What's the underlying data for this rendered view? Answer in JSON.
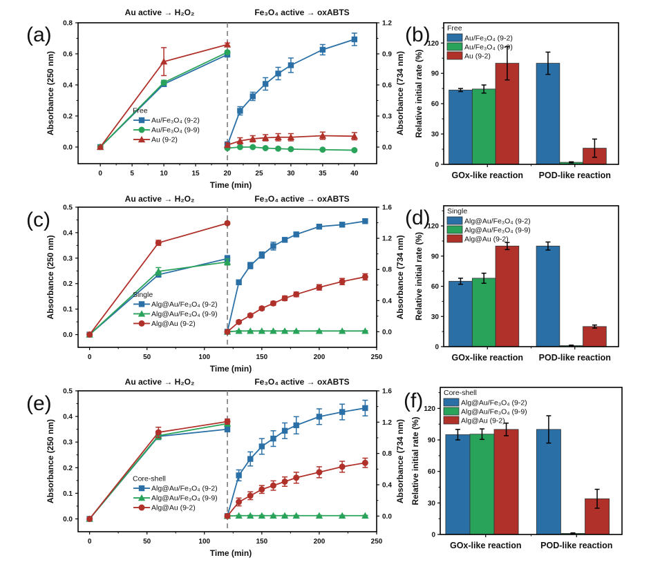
{
  "colors": {
    "blue": "#2a70a6",
    "green": "#2aa35a",
    "red": "#b0302a",
    "dashed": "#888888"
  },
  "chart_data": [
    {
      "id": "a",
      "type": "line",
      "panel_label": "(a)",
      "left_title": "Au active → H₂O₂",
      "right_title": "Fe₃O₄ active → oxABTS",
      "xlabel": "Time (min)",
      "ylabel_left": "Absorbance (250 nm)",
      "ylabel_right": "Absorbance (734 nm)",
      "xlim": [
        -3.5,
        43.5
      ],
      "xticks": [
        0,
        5,
        10,
        15,
        20,
        25,
        30,
        35,
        40
      ],
      "ylim_left": [
        -0.107,
        0.8
      ],
      "yticks_left": [
        "0.0",
        "0.2",
        "0.4",
        "0.6",
        "0.8"
      ],
      "ylim_right": [
        -0.16,
        1.2
      ],
      "yticks_right": [
        "0.0",
        "0.3",
        "0.6",
        "0.9",
        "1.2"
      ],
      "divider_x": 20,
      "legend_title": "Free",
      "legend_position": "center-left",
      "series": [
        {
          "name": "Au/Fe₃O₄ (9-2)",
          "color": "blue",
          "marker": "square",
          "left": {
            "x": [
              0,
              10,
              20
            ],
            "y": [
              0.0,
              0.405,
              0.595
            ],
            "err": [
              0.005,
              0.015,
              0.01
            ]
          },
          "right": {
            "x": [
              20,
              22,
              24,
              26,
              28,
              30,
              35,
              40
            ],
            "y": [
              0.02,
              0.35,
              0.49,
              0.61,
              0.71,
              0.79,
              0.94,
              1.04
            ],
            "err": [
              0.03,
              0.04,
              0.04,
              0.06,
              0.06,
              0.07,
              0.05,
              0.06
            ]
          }
        },
        {
          "name": "Au/Fe₃O₄ (9-9)",
          "color": "green",
          "marker": "circle",
          "left": {
            "x": [
              0,
              10,
              20
            ],
            "y": [
              0.0,
              0.415,
              0.61
            ],
            "err": [
              0.005,
              0.015,
              0.01
            ]
          },
          "right": {
            "x": [
              20,
              22,
              24,
              26,
              28,
              30,
              35,
              40
            ],
            "y": [
              -0.01,
              0.0,
              0.0,
              -0.01,
              -0.015,
              -0.02,
              -0.025,
              -0.03
            ],
            "err": [
              0.01,
              0.01,
              0.01,
              0.01,
              0.01,
              0.01,
              0.01,
              0.01
            ]
          }
        },
        {
          "name": "Au  (9-2)",
          "color": "red",
          "marker": "triangle",
          "left": {
            "x": [
              0,
              10,
              20
            ],
            "y": [
              0.0,
              0.55,
              0.66
            ],
            "err": [
              0.005,
              0.09,
              0.01
            ]
          },
          "right": {
            "x": [
              20,
              22,
              24,
              26,
              28,
              30,
              35,
              40
            ],
            "y": [
              0.02,
              0.06,
              0.08,
              0.09,
              0.095,
              0.095,
              0.11,
              0.105
            ],
            "err": [
              0.02,
              0.03,
              0.03,
              0.03,
              0.035,
              0.035,
              0.035,
              0.035
            ]
          }
        }
      ]
    },
    {
      "id": "b",
      "type": "bar",
      "panel_label": "(b)",
      "ylabel": "Relative initial rate (%)",
      "ylim": [
        0,
        140
      ],
      "yticks": [
        "0",
        "30",
        "60",
        "90",
        "120"
      ],
      "categories": [
        "GOx-like reaction",
        "POD-like reaction"
      ],
      "legend_title": "Free",
      "legend_position": "top-left",
      "series": [
        {
          "name": "Au/Fe₃O₄ (9-2)",
          "color": "blue",
          "values": [
            73.5,
            100
          ],
          "err": [
            1.5,
            11
          ]
        },
        {
          "name": "Au/Fe₃O₄  (9-9)",
          "color": "green",
          "values": [
            74.5,
            2
          ],
          "err": [
            4,
            0.5
          ]
        },
        {
          "name": "Au (9-2)",
          "color": "red",
          "values": [
            100,
            16
          ],
          "err": [
            16.5,
            9
          ]
        }
      ]
    },
    {
      "id": "c",
      "type": "line",
      "panel_label": "(c)",
      "left_title": "Au active → H₂O₂",
      "right_title": "Fe₃O₄ active → oxABTS",
      "xlabel": "Time (min)",
      "ylabel_left": "Absorbance (250 nm)",
      "ylabel_right": "Absorbance (734 nm)",
      "xlim": [
        -10,
        250
      ],
      "xticks": [
        0,
        50,
        100,
        150,
        200,
        250
      ],
      "ylim_left": [
        -0.05,
        0.5
      ],
      "yticks_left": [
        "0.0",
        "0.1",
        "0.2",
        "0.3",
        "0.4",
        "0.5"
      ],
      "ylim_right": [
        -0.2,
        1.6
      ],
      "yticks_right": [
        "0.0",
        "0.4",
        "0.8",
        "1.2",
        "1.6"
      ],
      "divider_x": 120,
      "legend_title": "Single",
      "legend_position": "center-left",
      "series": [
        {
          "name": "Alg@Au/Fe₃O₄ (9-2)",
          "color": "blue",
          "marker": "square",
          "left": {
            "x": [
              0,
              60,
              120
            ],
            "y": [
              0.0,
              0.235,
              0.298
            ],
            "err": [
              0.003,
              0.008,
              0.012
            ]
          },
          "right": {
            "x": [
              120,
              130,
              140,
              150,
              160,
              170,
              180,
              200,
              220,
              240
            ],
            "y": [
              0.0,
              0.635,
              0.85,
              0.985,
              1.1,
              1.18,
              1.25,
              1.35,
              1.375,
              1.42
            ],
            "err": [
              0.02,
              0.03,
              0.04,
              0.04,
              0.05,
              0.03,
              0.03,
              0.03,
              0.03,
              0.03
            ]
          }
        },
        {
          "name": "Alg@Au/Fe₃O₄  (9-9)",
          "color": "green",
          "marker": "triangle",
          "left": {
            "x": [
              0,
              60,
              120
            ],
            "y": [
              0.0,
              0.248,
              0.285
            ],
            "err": [
              0.003,
              0.015,
              0.012
            ]
          },
          "right": {
            "x": [
              120,
              130,
              140,
              150,
              160,
              170,
              180,
              200,
              220,
              240
            ],
            "y": [
              0.0,
              0.01,
              0.01,
              0.01,
              0.01,
              0.01,
              0.01,
              0.01,
              0.01,
              0.01
            ],
            "err": [
              0.005,
              0.005,
              0.005,
              0.005,
              0.005,
              0.005,
              0.005,
              0.005,
              0.005,
              0.005
            ]
          }
        },
        {
          "name": "Alg@Au (9-2)",
          "color": "red",
          "marker": "circle",
          "left": {
            "x": [
              0,
              60,
              120
            ],
            "y": [
              0.0,
              0.36,
              0.437
            ],
            "err": [
              0.003,
              0.01,
              0.005
            ]
          },
          "right": {
            "x": [
              120,
              130,
              140,
              150,
              160,
              170,
              180,
              200,
              220,
              240
            ],
            "y": [
              0.0,
              0.125,
              0.21,
              0.3,
              0.365,
              0.43,
              0.48,
              0.57,
              0.645,
              0.705
            ],
            "err": [
              0.01,
              0.02,
              0.02,
              0.02,
              0.025,
              0.03,
              0.03,
              0.035,
              0.04,
              0.04
            ]
          }
        }
      ]
    },
    {
      "id": "d",
      "type": "bar",
      "panel_label": "(d)",
      "ylabel": "Relative initial rate (%)",
      "ylim": [
        0,
        140
      ],
      "yticks": [
        "0",
        "30",
        "60",
        "90",
        "120"
      ],
      "categories": [
        "GOx-like reaction",
        "POD-like reaction"
      ],
      "legend_title": "Single",
      "legend_position": "top-left",
      "series": [
        {
          "name": "Alg@Au/Fe₃O₄ (9-2)",
          "color": "blue",
          "values": [
            65,
            100
          ],
          "err": [
            3,
            4
          ]
        },
        {
          "name": "Alg@Au/Fe₃O₄  (9-9)",
          "color": "green",
          "values": [
            68,
            1
          ],
          "err": [
            5,
            0.5
          ]
        },
        {
          "name": "Alg@Au (9-2)",
          "color": "red",
          "values": [
            100,
            20
          ],
          "err": [
            3.5,
            1.5
          ]
        }
      ]
    },
    {
      "id": "e",
      "type": "line",
      "panel_label": "(e)",
      "left_title": "Au active → H₂O₂",
      "right_title": "Fe₃O₄ active → oxABTS",
      "xlabel": "Time (min)",
      "ylabel_left": "Absorbance (250 nm)",
      "ylabel_right": "Absorbance (734 nm)",
      "xlim": [
        -10,
        250
      ],
      "xticks": [
        0,
        50,
        100,
        150,
        200,
        250
      ],
      "ylim_left": [
        -0.05,
        0.5
      ],
      "yticks_left": [
        "0.0",
        "0.1",
        "0.2",
        "0.3",
        "0.4",
        "0.5"
      ],
      "ylim_right": [
        -0.2,
        1.6
      ],
      "yticks_right": [
        "0.0",
        "0.4",
        "0.8",
        "1.2",
        "1.6"
      ],
      "divider_x": 120,
      "legend_title": "Core-shell",
      "legend_position": "center-left",
      "series": [
        {
          "name": "Alg@Au/Fe₃O₄  (9-2)",
          "color": "blue",
          "marker": "square",
          "left": {
            "x": [
              0,
              60,
              120
            ],
            "y": [
              0.0,
              0.322,
              0.35
            ],
            "err": [
              0.003,
              0.012,
              0.01
            ]
          },
          "right": {
            "x": [
              120,
              130,
              140,
              150,
              160,
              170,
              180,
              200,
              220,
              240
            ],
            "y": [
              0.0,
              0.52,
              0.73,
              0.89,
              0.99,
              1.09,
              1.16,
              1.27,
              1.33,
              1.38
            ],
            "err": [
              0.02,
              0.07,
              0.09,
              0.1,
              0.1,
              0.1,
              0.11,
              0.1,
              0.1,
              0.1
            ]
          }
        },
        {
          "name": "Alg@Au/Fe₃O₄  (9-9)",
          "color": "green",
          "marker": "triangle",
          "left": {
            "x": [
              0,
              60,
              120
            ],
            "y": [
              0.0,
              0.325,
              0.372
            ],
            "err": [
              0.003,
              0.015,
              0.01
            ]
          },
          "right": {
            "x": [
              120,
              130,
              140,
              150,
              160,
              170,
              180,
              200,
              220,
              240
            ],
            "y": [
              0.0,
              0.005,
              0.005,
              0.005,
              0.005,
              0.005,
              0.005,
              0.005,
              0.005,
              0.005
            ],
            "err": [
              0.005,
              0.005,
              0.005,
              0.005,
              0.005,
              0.005,
              0.005,
              0.005,
              0.005,
              0.005
            ]
          }
        },
        {
          "name": "Alg@Au (9-2)",
          "color": "red",
          "marker": "circle",
          "left": {
            "x": [
              0,
              60,
              120
            ],
            "y": [
              0.0,
              0.338,
              0.38
            ],
            "err": [
              0.003,
              0.02,
              0.01
            ]
          },
          "right": {
            "x": [
              120,
              130,
              140,
              150,
              160,
              170,
              180,
              200,
              220,
              240
            ],
            "y": [
              0.0,
              0.18,
              0.26,
              0.34,
              0.39,
              0.44,
              0.49,
              0.56,
              0.63,
              0.68
            ],
            "err": [
              0.02,
              0.05,
              0.05,
              0.05,
              0.06,
              0.06,
              0.07,
              0.07,
              0.07,
              0.06
            ]
          }
        }
      ]
    },
    {
      "id": "f",
      "type": "bar",
      "panel_label": "(f)",
      "ylabel": "Relative initial rate (%)",
      "ylim": [
        0,
        140
      ],
      "yticks": [
        "0",
        "30",
        "60",
        "90",
        "120"
      ],
      "categories": [
        "GOx-like reaction",
        "POD-like reaction"
      ],
      "legend_title": "Core-shell",
      "legend_position": "top-left",
      "series": [
        {
          "name": "Alg@Au/Fe₃O₄ (9-2)",
          "color": "blue",
          "values": [
            95,
            100
          ],
          "err": [
            5,
            13
          ]
        },
        {
          "name": "Alg@Au/Fe₃O₄  (9-9)",
          "color": "green",
          "values": [
            95.5,
            1
          ],
          "err": [
            5,
            0.5
          ]
        },
        {
          "name": "Alg@Au (9-2)",
          "color": "red",
          "values": [
            100,
            34
          ],
          "err": [
            6,
            9
          ]
        }
      ]
    }
  ]
}
